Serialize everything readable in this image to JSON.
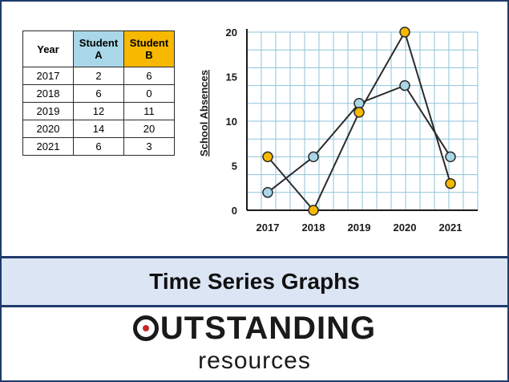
{
  "table": {
    "headers": [
      "Year",
      "Student A",
      "Student B"
    ],
    "rows": [
      [
        "2017",
        "2",
        "6"
      ],
      [
        "2018",
        "6",
        "0"
      ],
      [
        "2019",
        "12",
        "11"
      ],
      [
        "2020",
        "14",
        "20"
      ],
      [
        "2021",
        "6",
        "3"
      ]
    ]
  },
  "chart_data": {
    "type": "line",
    "categories": [
      "2017",
      "2018",
      "2019",
      "2020",
      "2021"
    ],
    "series": [
      {
        "name": "",
        "color": "#a9d7e8",
        "values": [
          2,
          6,
          12,
          14,
          6
        ]
      },
      {
        "name": "",
        "color": "#f7b800",
        "values": [
          6,
          0,
          11,
          20,
          3
        ]
      }
    ],
    "title": "",
    "xlabel": "",
    "ylabel": "School Absences",
    "ylim": [
      0,
      20
    ],
    "yticks": [
      0,
      5,
      10,
      15,
      20
    ],
    "grid": true
  },
  "banner": {
    "title": "Time Series Graphs"
  },
  "brand": {
    "word": "OUTSTANDING",
    "word_rest": "UTSTANDING",
    "sub": "resources"
  },
  "colors": {
    "accent": "#1f3b6b",
    "band": "#dbe5f4",
    "student_a": "#a9d7e8",
    "student_b": "#f7b800",
    "logo_dot": "#c62828"
  }
}
